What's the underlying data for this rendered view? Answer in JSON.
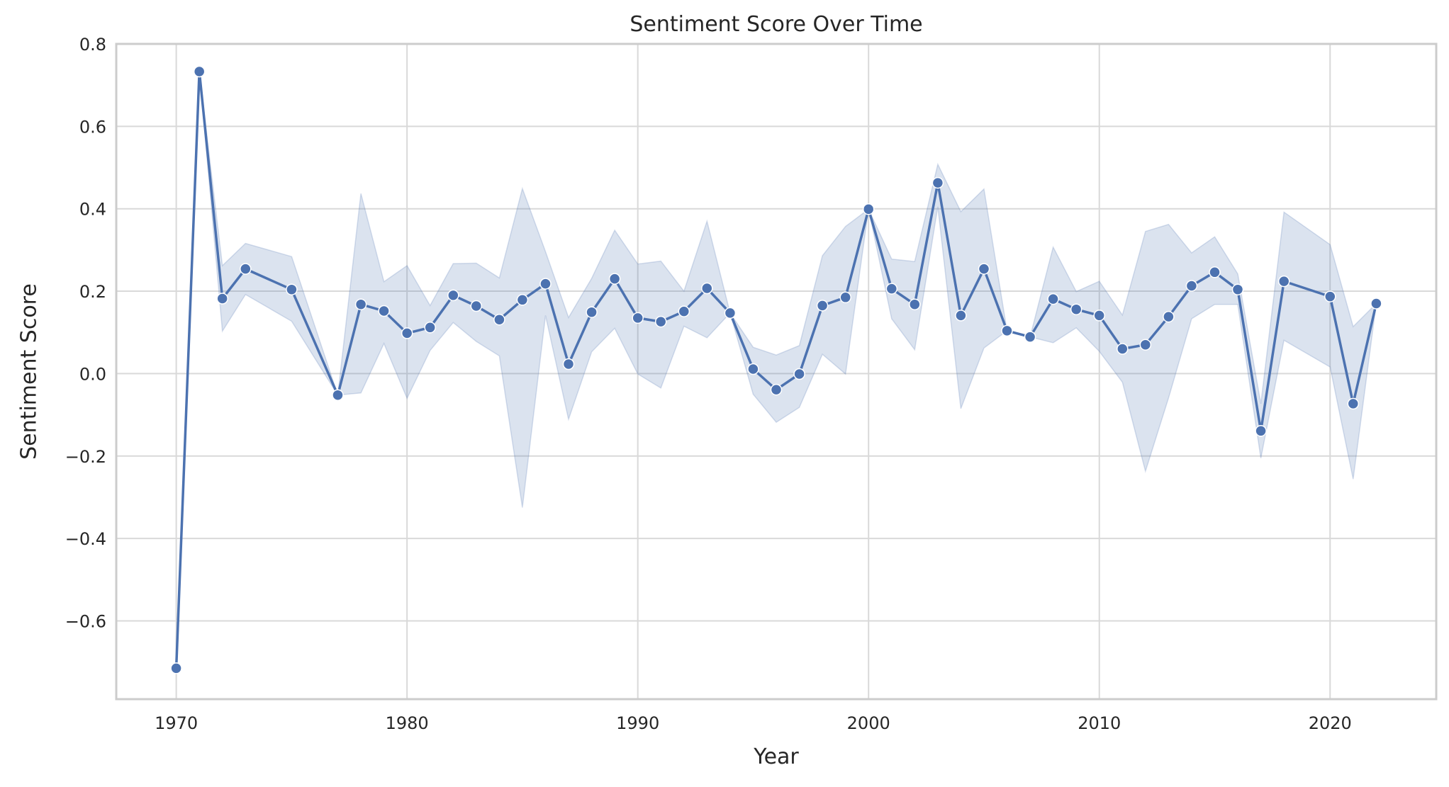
{
  "chart_data": {
    "type": "line",
    "title": "Sentiment Score Over Time",
    "xlabel": "Year",
    "ylabel": "Sentiment Score",
    "xlim": [
      1967.4,
      2024.6
    ],
    "ylim": [
      -0.79,
      0.8
    ],
    "xticks": [
      1970,
      1980,
      1990,
      2000,
      2010,
      2020
    ],
    "xtick_labels": [
      "1970",
      "1980",
      "1990",
      "2000",
      "2010",
      "2020"
    ],
    "yticks": [
      -0.6,
      -0.4,
      -0.2,
      0.0,
      0.2,
      0.4,
      0.6,
      0.8
    ],
    "ytick_labels": [
      "−0.6",
      "−0.4",
      "−0.2",
      "0.0",
      "0.2",
      "0.4",
      "0.6",
      "0.8"
    ],
    "grid": true,
    "legend": false,
    "colors": {
      "series": "#4c72b0",
      "grid": "#d9d9d9",
      "frame": "#cccccc"
    },
    "series": [
      {
        "x": [
          1970,
          1971,
          1972,
          1973,
          1975,
          1977,
          1978,
          1979,
          1980,
          1981,
          1982,
          1983,
          1984,
          1985,
          1986,
          1987,
          1988,
          1989,
          1990,
          1991,
          1992,
          1993,
          1994,
          1995,
          1996,
          1997,
          1998,
          1999,
          2000,
          2001,
          2002,
          2003,
          2004,
          2005,
          2006,
          2007,
          2008,
          2009,
          2010,
          2011,
          2012,
          2013,
          2014,
          2015,
          2016,
          2017,
          2018,
          2020,
          2021,
          2022
        ],
        "y": [
          -0.715,
          0.733,
          0.182,
          0.254,
          0.204,
          -0.052,
          0.168,
          0.152,
          0.098,
          0.112,
          0.19,
          0.164,
          0.131,
          0.179,
          0.218,
          0.023,
          0.149,
          0.23,
          0.135,
          0.126,
          0.151,
          0.207,
          0.147,
          0.011,
          -0.039,
          -0.001,
          0.165,
          0.185,
          0.399,
          0.206,
          0.168,
          0.463,
          0.141,
          0.254,
          0.104,
          0.089,
          0.181,
          0.156,
          0.141,
          0.06,
          0.07,
          0.138,
          0.213,
          0.246,
          0.204,
          -0.139,
          0.224,
          0.187,
          -0.073,
          0.17
        ],
        "ci_lower": [
          -0.715,
          0.733,
          0.103,
          0.192,
          0.127,
          -0.052,
          -0.047,
          0.073,
          -0.06,
          0.056,
          0.124,
          0.078,
          0.043,
          -0.325,
          0.141,
          -0.111,
          0.053,
          0.11,
          -0.001,
          -0.035,
          0.115,
          0.087,
          0.147,
          -0.05,
          -0.118,
          -0.082,
          0.047,
          -0.001,
          0.399,
          0.133,
          0.058,
          0.405,
          -0.085,
          0.062,
          0.104,
          0.089,
          0.075,
          0.111,
          0.054,
          -0.021,
          -0.237,
          -0.059,
          0.133,
          0.168,
          0.168,
          -0.205,
          0.081,
          0.016,
          -0.256,
          0.17
        ],
        "ci_upper": [
          -0.715,
          0.733,
          0.262,
          0.316,
          0.284,
          -0.052,
          0.437,
          0.223,
          0.262,
          0.165,
          0.267,
          0.268,
          0.232,
          0.449,
          0.296,
          0.136,
          0.231,
          0.348,
          0.266,
          0.273,
          0.2,
          0.37,
          0.147,
          0.064,
          0.045,
          0.068,
          0.286,
          0.357,
          0.399,
          0.278,
          0.272,
          0.508,
          0.393,
          0.448,
          0.104,
          0.089,
          0.307,
          0.199,
          0.224,
          0.142,
          0.345,
          0.362,
          0.293,
          0.332,
          0.242,
          -0.073,
          0.392,
          0.313,
          0.114,
          0.17
        ]
      }
    ]
  }
}
